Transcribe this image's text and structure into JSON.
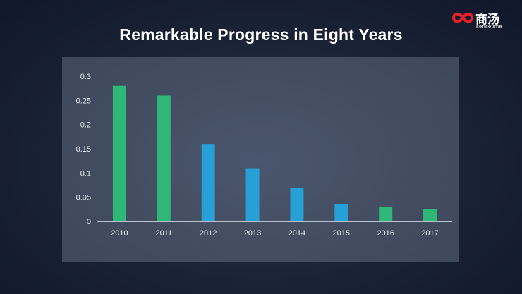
{
  "page": {
    "title": "Remarkable Progress in Eight Years"
  },
  "logo": {
    "text_cn": "商汤",
    "text_en": "sensetime",
    "colors": {
      "mark": "#e8202a",
      "text": "#ffffff"
    }
  },
  "chart_data": {
    "type": "bar",
    "title": "Remarkable Progress in Eight Years",
    "xlabel": "",
    "ylabel": "",
    "categories": [
      "2010",
      "2011",
      "2012",
      "2013",
      "2014",
      "2015",
      "2016",
      "2017"
    ],
    "values": [
      0.28,
      0.26,
      0.16,
      0.11,
      0.07,
      0.036,
      0.03,
      0.026
    ],
    "bar_colors": [
      "#2fb778",
      "#2fb778",
      "#26a0d6",
      "#26a0d6",
      "#26a0d6",
      "#26a0d6",
      "#2fb778",
      "#2fb778"
    ],
    "ylim": [
      0,
      0.3
    ],
    "yticks": [
      0,
      0.05,
      0.1,
      0.15,
      0.2,
      0.25,
      0.3
    ],
    "ytick_labels": [
      "0",
      "0.05",
      "0.1",
      "0.15",
      "0.2",
      "0.25",
      "0.3"
    ],
    "grid": false,
    "legend": "none"
  }
}
